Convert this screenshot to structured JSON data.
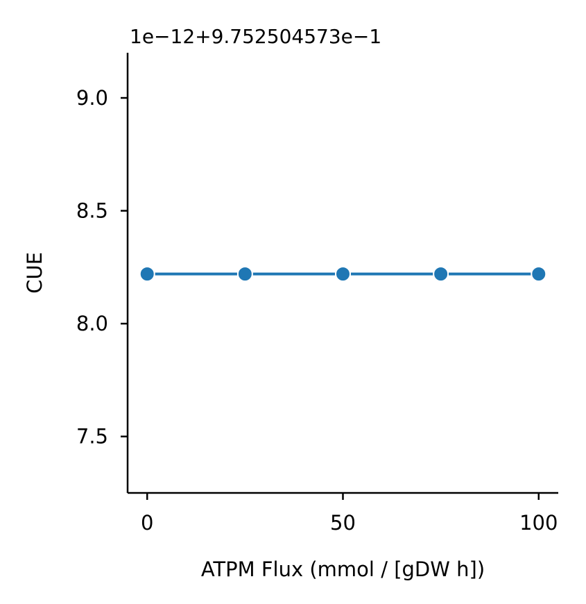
{
  "chart_data": {
    "type": "line",
    "title": "",
    "xlabel": "ATPM Flux (mmol / [gDW h])",
    "ylabel": "CUE",
    "y_offset_text": "1e−12+9.752504573e−1",
    "xlim": [
      -5,
      105
    ],
    "ylim": [
      7.25,
      9.2
    ],
    "x_ticks": [
      0,
      50,
      100
    ],
    "x_tick_labels": [
      "0",
      "50",
      "100"
    ],
    "y_ticks": [
      7.5,
      8.0,
      8.5,
      9.0
    ],
    "y_tick_labels": [
      "7.5",
      "8.0",
      "8.5",
      "9.0"
    ],
    "grid": false,
    "legend": "none",
    "series": [
      {
        "color": "#1f77b4",
        "marker": "circle",
        "x": [
          0,
          25,
          50,
          75,
          100
        ],
        "y": [
          8.22,
          8.22,
          8.22,
          8.22,
          8.22
        ]
      }
    ]
  }
}
